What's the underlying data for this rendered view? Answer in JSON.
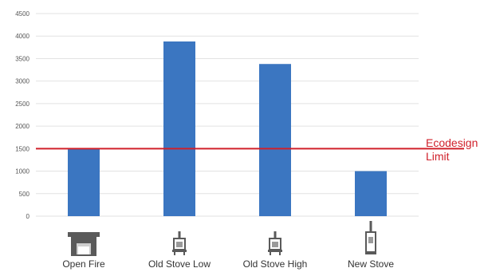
{
  "chart_data": {
    "type": "bar",
    "categories": [
      "Open Fire",
      "Old Stove Low",
      "Old Stove High",
      "New Stove"
    ],
    "values": [
      1500,
      3880,
      3380,
      1000
    ],
    "ylim": [
      0,
      4500
    ],
    "yticks": [
      "0",
      "500",
      "1000",
      "1500",
      "2000",
      "2500",
      "3000",
      "3500",
      "4000",
      "4500"
    ],
    "grid": true,
    "bar_color": "#3b76c1",
    "reference_line": {
      "value": 1500,
      "label_lines": [
        "Ecodesign",
        "Limit"
      ],
      "color": "#d0202a"
    },
    "category_icons": [
      "fireplace-icon",
      "old-stove-icon",
      "old-stove-icon",
      "new-stove-icon"
    ]
  }
}
